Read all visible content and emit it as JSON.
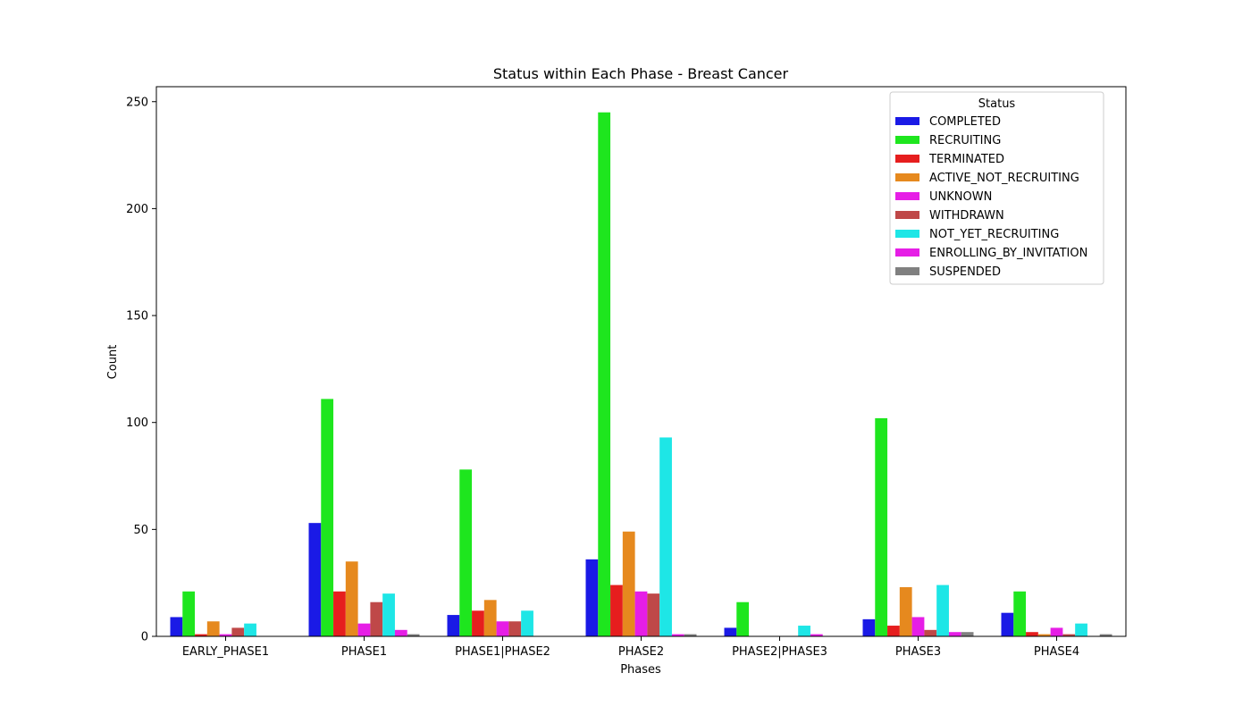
{
  "chart_data": {
    "type": "bar",
    "title": "Status within Each Phase - Breast Cancer",
    "xlabel": "Phases",
    "ylabel": "Count",
    "ylim": [
      0,
      257
    ],
    "yticks": [
      0,
      50,
      100,
      150,
      200,
      250
    ],
    "grid": false,
    "legend": {
      "title": "Status",
      "placement": "top-right"
    },
    "categories": [
      "EARLY_PHASE1",
      "PHASE1",
      "PHASE1|PHASE2",
      "PHASE2",
      "PHASE2|PHASE3",
      "PHASE3",
      "PHASE4"
    ],
    "series": [
      {
        "name": "COMPLETED",
        "color": "#1a1ae6",
        "values": [
          9,
          53,
          10,
          36,
          4,
          8,
          11
        ]
      },
      {
        "name": "RECRUITING",
        "color": "#1ee61e",
        "values": [
          21,
          111,
          78,
          245,
          16,
          102,
          21
        ]
      },
      {
        "name": "TERMINATED",
        "color": "#e61e1e",
        "values": [
          1,
          21,
          12,
          24,
          0,
          5,
          2
        ]
      },
      {
        "name": "ACTIVE_NOT_RECRUITING",
        "color": "#e6891e",
        "values": [
          7,
          35,
          17,
          49,
          0,
          23,
          1
        ]
      },
      {
        "name": "UNKNOWN",
        "color": "#e61ee6",
        "values": [
          1,
          6,
          7,
          21,
          0,
          9,
          4
        ]
      },
      {
        "name": "WITHDRAWN",
        "color": "#bf4848",
        "values": [
          4,
          16,
          7,
          20,
          0,
          3,
          1
        ]
      },
      {
        "name": "NOT_YET_RECRUITING",
        "color": "#1ee6e6",
        "values": [
          6,
          20,
          12,
          93,
          5,
          24,
          6
        ]
      },
      {
        "name": "ENROLLING_BY_INVITATION",
        "color": "#e61ee6",
        "values": [
          0,
          3,
          0,
          1,
          1,
          2,
          0
        ]
      },
      {
        "name": "SUSPENDED",
        "color": "#808080",
        "values": [
          0,
          1,
          0,
          1,
          0,
          2,
          1
        ]
      }
    ]
  }
}
